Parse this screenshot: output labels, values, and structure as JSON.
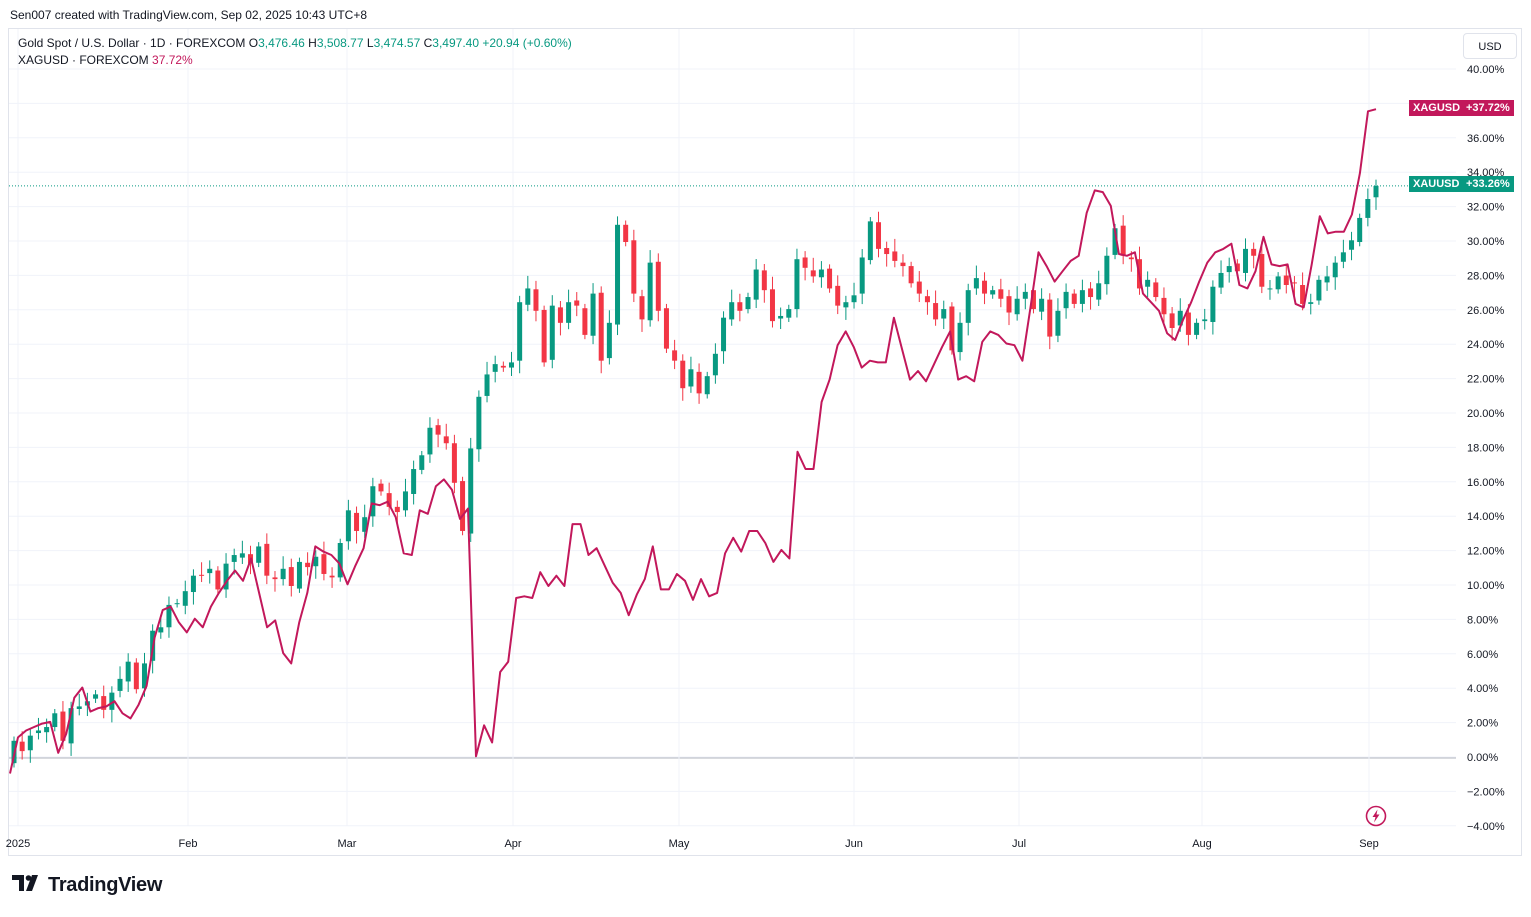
{
  "header": {
    "created_by": "Sen007 created with TradingView.com, Sep 02, 2025 10:43 UTC+8"
  },
  "legend": {
    "symbol": "Gold Spot / U.S. Dollar · 1D · FOREXCOM",
    "o_label": "O",
    "o_value": "3,476.46",
    "h_label": "H",
    "h_value": "3,508.77",
    "l_label": "L",
    "l_value": "3,474.57",
    "c_label": "C",
    "c_value": "3,497.40",
    "change": "+20.94 (+0.60%)",
    "compare_symbol": "XAGUSD · FOREXCOM",
    "compare_value": "37.72%"
  },
  "currency_button": "USD",
  "tags": {
    "xag_name": "XAGUSD",
    "xag_value": "+37.72%",
    "xau_name": "XAUUSD",
    "xau_value": "+33.26%"
  },
  "branding": {
    "name": "TradingView"
  },
  "icons": {
    "brand": "tradingview-logo-icon",
    "alert": "lightning-bolt-icon"
  },
  "colors": {
    "up": "#089981",
    "down": "#f23645",
    "compare": "#c2185b",
    "last_price": "#089981"
  },
  "chart_data": {
    "type": "line",
    "ylabel_unit": "%",
    "ylim": [
      -4,
      40
    ],
    "y_ticks": [
      "40.00%",
      "38.00%",
      "36.00%",
      "34.00%",
      "32.00%",
      "30.00%",
      "28.00%",
      "26.00%",
      "24.00%",
      "22.00%",
      "20.00%",
      "18.00%",
      "16.00%",
      "14.00%",
      "12.00%",
      "10.00%",
      "8.00%",
      "6.00%",
      "4.00%",
      "2.00%",
      "0.00%",
      "−2.00%",
      "−4.00%"
    ],
    "x_ticks": [
      "2025",
      "Feb",
      "Mar",
      "Apr",
      "May",
      "Jun",
      "Jul",
      "Aug",
      "Sep"
    ],
    "grid": true,
    "last_value_line": 33.26,
    "series": [
      {
        "name": "XAUUSD",
        "style": "candles",
        "close": [
          1.0,
          0.4,
          1.3,
          1.6,
          1.8,
          2.6,
          1.0,
          2.9,
          3.0,
          3.3,
          3.7,
          2.8,
          3.8,
          4.6,
          5.6,
          4.0,
          5.5,
          7.4,
          7.6,
          8.9,
          9.0,
          9.7,
          10.6,
          10.6,
          11.0,
          9.8,
          11.3,
          11.8,
          11.9,
          11.3,
          12.3,
          10.6,
          10.4,
          11.0,
          10.0,
          11.4,
          11.1,
          11.7,
          10.7,
          10.5,
          12.5,
          14.4,
          13.2,
          14.0,
          15.8,
          15.5,
          14.6,
          14.3,
          15.5,
          16.8,
          17.6,
          19.2,
          18.8,
          18.3,
          16.0,
          13.2,
          18.0,
          21.0,
          22.3,
          22.9,
          22.7,
          23.0,
          26.5,
          27.3,
          26.0,
          23.0,
          26.3,
          25.3,
          26.5,
          26.3,
          24.6,
          27.0,
          23.1,
          25.3,
          31.0,
          30.0,
          27.0,
          25.5,
          28.8,
          26.0,
          23.8,
          23.1,
          21.5,
          22.6,
          21.2,
          22.2,
          23.5,
          25.6,
          26.5,
          26.0,
          26.8,
          28.4,
          27.2,
          25.4,
          25.7,
          26.1,
          29.0,
          28.5,
          28.0,
          28.4,
          27.3,
          26.3,
          26.5,
          26.9,
          29.1,
          31.2,
          29.6,
          29.3,
          28.9,
          28.6,
          27.6,
          27.0,
          26.5,
          25.5,
          26.1,
          23.7,
          25.3,
          27.2,
          27.9,
          27.0,
          27.2,
          26.7,
          25.9,
          26.7,
          27.1,
          26.1,
          26.7,
          24.5,
          26.0,
          27.1,
          26.4,
          27.2,
          26.8,
          27.6,
          29.2,
          30.8,
          29.2,
          29.0,
          27.3,
          27.8,
          26.8,
          25.8,
          25.0,
          26.0,
          24.6,
          25.3,
          25.5,
          27.4,
          28.2,
          28.6,
          28.3,
          29.6,
          29.2,
          27.4,
          27.3,
          28.0,
          27.5,
          27.6,
          26.4,
          26.5,
          27.8,
          28.0,
          28.8,
          29.4,
          30.1,
          31.4,
          32.5,
          33.26
        ]
      },
      {
        "name": "XAGUSD",
        "style": "line",
        "values": [
          -0.9,
          1.2,
          1.6,
          1.8,
          2.0,
          2.1,
          0.3,
          1.4,
          3.5,
          4.1,
          2.7,
          2.9,
          3.0,
          3.3,
          2.6,
          2.3,
          3.1,
          4.2,
          7.0,
          8.6,
          8.8,
          7.9,
          7.3,
          8.1,
          7.6,
          8.8,
          9.6,
          10.3,
          10.9,
          10.3,
          11.6,
          9.6,
          7.6,
          8.0,
          6.1,
          5.5,
          7.9,
          9.6,
          12.3,
          12.0,
          11.8,
          11.3,
          10.1,
          11.2,
          12.2,
          14.8,
          14.7,
          14.9,
          14.0,
          11.9,
          11.8,
          14.4,
          14.2,
          15.8,
          16.2,
          15.6,
          13.9,
          14.5,
          0.1,
          1.9,
          0.9,
          5.0,
          5.6,
          9.3,
          9.4,
          9.3,
          10.8,
          10.0,
          10.6,
          10.0,
          13.6,
          13.6,
          11.8,
          12.2,
          11.2,
          10.2,
          9.6,
          8.3,
          9.5,
          10.4,
          12.3,
          9.8,
          9.8,
          10.7,
          10.3,
          9.2,
          10.4,
          9.4,
          9.6,
          11.9,
          12.8,
          12.0,
          13.2,
          13.2,
          12.5,
          11.4,
          12.1,
          11.6,
          17.8,
          16.8,
          16.8,
          20.7,
          22.0,
          24.0,
          24.8,
          23.9,
          22.7,
          23.1,
          23.0,
          23.0,
          25.6,
          23.8,
          22.0,
          22.5,
          21.9,
          22.9,
          23.9,
          24.8,
          22.0,
          22.2,
          21.9,
          24.2,
          24.8,
          24.6,
          24.1,
          24.0,
          23.1,
          26.2,
          29.4,
          28.6,
          27.7,
          28.3,
          28.9,
          29.2,
          31.7,
          33.0,
          32.9,
          32.1,
          29.3,
          29.2,
          29.4,
          27.0,
          26.5,
          26.0,
          24.7,
          24.3,
          25.5,
          26.5,
          27.7,
          28.8,
          29.4,
          29.6,
          29.9,
          27.5,
          27.3,
          28.3,
          30.3,
          28.7,
          28.6,
          28.7,
          26.4,
          26.2,
          28.7,
          31.5,
          30.5,
          30.6,
          30.6,
          31.6,
          34.0,
          37.6,
          37.72
        ]
      }
    ]
  }
}
